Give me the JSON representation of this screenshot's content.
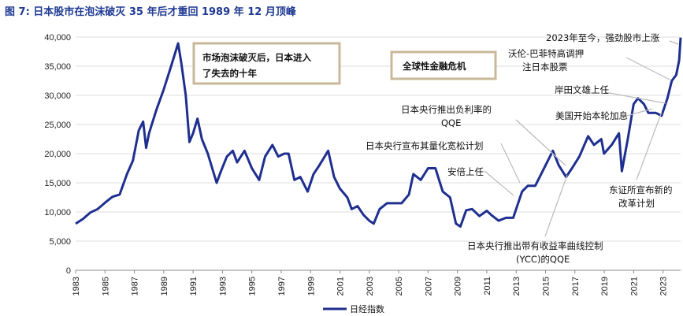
{
  "title": "图 7: 日本股市在泡沫破灭 35 年后才重回 1989 年 12 月顶峰",
  "chart_data": {
    "type": "line",
    "title": "图 7: 日本股市在泡沫破灭 35 年后才重回 1989 年 12 月顶峰",
    "xlabel": "",
    "ylabel": "",
    "xlim": [
      1983,
      2024.2
    ],
    "ylim": [
      0,
      40000
    ],
    "y_ticks": [
      "0",
      "5,000",
      "10,000",
      "15,000",
      "20,000",
      "25,000",
      "30,000",
      "35,000",
      "40,000"
    ],
    "y_tick_values": [
      0,
      5000,
      10000,
      15000,
      20000,
      25000,
      30000,
      35000,
      40000
    ],
    "x_ticks": [
      "1983",
      "1985",
      "1987",
      "1989",
      "1991",
      "1993",
      "1995",
      "1997",
      "1999",
      "2001",
      "2003",
      "2005",
      "2007",
      "2009",
      "2011",
      "2013",
      "2015",
      "2017",
      "2019",
      "2021",
      "2023"
    ],
    "x_tick_values": [
      1983,
      1985,
      1987,
      1989,
      1991,
      1993,
      1995,
      1997,
      1999,
      2001,
      2003,
      2005,
      2007,
      2009,
      2011,
      2013,
      2015,
      2017,
      2019,
      2021,
      2023
    ],
    "legend": "bottom-center",
    "series": [
      {
        "name": "日经指数",
        "color": "#1f2f8f",
        "x": [
          1983.0,
          1983.5,
          1984.0,
          1984.5,
          1985.0,
          1985.5,
          1986.0,
          1986.5,
          1986.9,
          1987.3,
          1987.6,
          1987.8,
          1988.0,
          1988.5,
          1989.0,
          1989.5,
          1989.98,
          1990.2,
          1990.5,
          1990.75,
          1991.0,
          1991.3,
          1991.6,
          1992.0,
          1992.3,
          1992.6,
          1992.9,
          1993.3,
          1993.7,
          1994.0,
          1994.5,
          1995.0,
          1995.5,
          1995.9,
          1996.4,
          1996.8,
          1997.2,
          1997.5,
          1997.9,
          1998.3,
          1998.8,
          1999.2,
          1999.6,
          2000.2,
          2000.6,
          2001.0,
          2001.5,
          2001.8,
          2002.2,
          2002.6,
          2003.0,
          2003.3,
          2003.7,
          2004.2,
          2004.7,
          2005.2,
          2005.7,
          2006.0,
          2006.5,
          2007.0,
          2007.5,
          2008.0,
          2008.5,
          2008.9,
          2009.2,
          2009.6,
          2010.0,
          2010.5,
          2011.0,
          2011.3,
          2011.8,
          2012.3,
          2012.8,
          2013.0,
          2013.4,
          2013.8,
          2014.3,
          2014.8,
          2015.3,
          2015.5,
          2015.9,
          2016.4,
          2016.8,
          2017.3,
          2017.9,
          2018.3,
          2018.8,
          2018.98,
          2019.5,
          2020.0,
          2020.2,
          2020.6,
          2021.0,
          2021.3,
          2021.7,
          2022.0,
          2022.5,
          2022.9,
          2023.3,
          2023.6,
          2023.9,
          2024.1,
          2024.2
        ],
        "values": [
          8000,
          8800,
          9900,
          10500,
          11600,
          12600,
          13000,
          16500,
          18800,
          24000,
          25500,
          21000,
          23500,
          27500,
          31000,
          35000,
          38915,
          35500,
          30000,
          22000,
          23500,
          26000,
          22500,
          20000,
          17500,
          15000,
          17000,
          19500,
          20500,
          18500,
          20500,
          17500,
          15500,
          19500,
          21500,
          19500,
          20000,
          20000,
          15500,
          16000,
          13500,
          16500,
          18000,
          20500,
          16000,
          14000,
          12500,
          10500,
          11000,
          9500,
          8500,
          8000,
          10500,
          11500,
          11500,
          11500,
          13000,
          16500,
          15500,
          17500,
          17500,
          13500,
          12500,
          8000,
          7500,
          10300,
          10500,
          9300,
          10200,
          9500,
          8500,
          9000,
          9000,
          10500,
          13500,
          14500,
          14500,
          17000,
          19500,
          20500,
          18000,
          16000,
          17500,
          19500,
          23000,
          21500,
          22500,
          20000,
          21500,
          23500,
          17000,
          22500,
          28500,
          29500,
          28500,
          27000,
          27000,
          26500,
          29500,
          32500,
          33500,
          36000,
          39900
        ]
      }
    ],
    "annotations": [
      {
        "text": "2023年至今，强劲股市上涨",
        "x": 2024.1,
        "y": 39500
      },
      {
        "text": "沃伦-巴菲特高调押注日本股票",
        "x": 2023.4,
        "y": 30000
      },
      {
        "text": "岸田文雄上任",
        "x": 2021.8,
        "y": 28500
      },
      {
        "text": "美国开始本轮加息",
        "x": 2022.2,
        "y": 27500
      },
      {
        "text": "日本央行推出负利率的QQE",
        "x": 2016.1,
        "y": 17000
      },
      {
        "text": "日本央行宣布其量化宽松计划",
        "x": 2013.3,
        "y": 13500
      },
      {
        "text": "安倍上任",
        "x": 2012.9,
        "y": 9500
      },
      {
        "text": "东证所宣布新的改革计划",
        "x": 2023.1,
        "y": 23000
      },
      {
        "text": "日本央行推出带有收益率曲线控制(YCC)的QQE",
        "x": 2016.7,
        "y": 16000
      }
    ],
    "boxes": [
      {
        "text": "市场泡沫破灭后，日本进入了失去的十年"
      },
      {
        "text": "全球性金融危机"
      }
    ]
  },
  "annotation_lines": {
    "a1": "2023年至今，强劲股市上涨",
    "a2a": "沃伦-巴菲特高调押",
    "a2b": "注日本股票",
    "a3": "岸田文雄上任",
    "a4": "美国开始本轮加息",
    "a5a": "日本央行推出负利率的",
    "a5b": "QQE",
    "a6": "日本央行宣布其量化宽松计划",
    "a7": "安倍上任",
    "a8a": "东证所宣布新的",
    "a8b": "改革计划",
    "a9a": "日本央行推出带有收益率曲线控制",
    "a9b": "(YCC)的QQE"
  },
  "box_lines": {
    "b1a": "市场泡沫破灭后，日本进入",
    "b1b": "了失去的十年",
    "b2": "全球性金融危机"
  },
  "legend_label": "日经指数"
}
